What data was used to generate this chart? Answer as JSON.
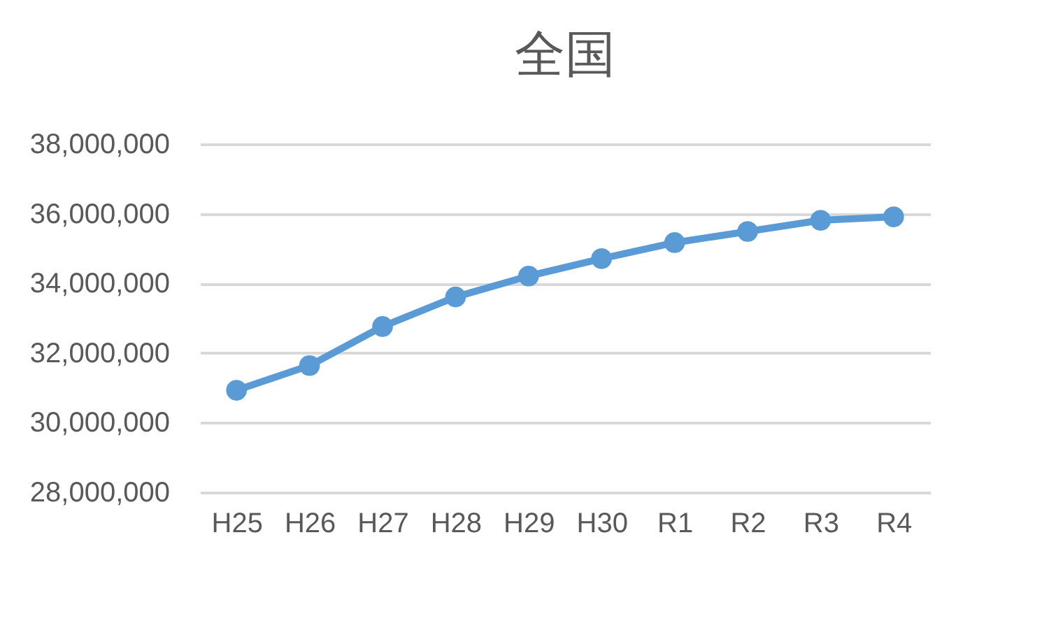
{
  "chart_data": {
    "type": "line",
    "title": "全国",
    "categories": [
      "H25",
      "H26",
      "H27",
      "H28",
      "H29",
      "H30",
      "R1",
      "R2",
      "R3",
      "R4"
    ],
    "series": [
      {
        "color": "#5b9bd5",
        "values": [
          30930000,
          31640000,
          32760000,
          33610000,
          34210000,
          34710000,
          35170000,
          35490000,
          35810000,
          35910000
        ]
      }
    ],
    "ylim": [
      28000000,
      38000000
    ],
    "yticks": [
      {
        "value": 28000000,
        "label": "28,000,000"
      },
      {
        "value": 30000000,
        "label": "30,000,000"
      },
      {
        "value": 32000000,
        "label": "32,000,000"
      },
      {
        "value": 34000000,
        "label": "34,000,000"
      },
      {
        "value": 36000000,
        "label": "36,000,000"
      },
      {
        "value": 38000000,
        "label": "38,000,000"
      }
    ],
    "grid": "y",
    "marker": "circle",
    "legend": false
  }
}
